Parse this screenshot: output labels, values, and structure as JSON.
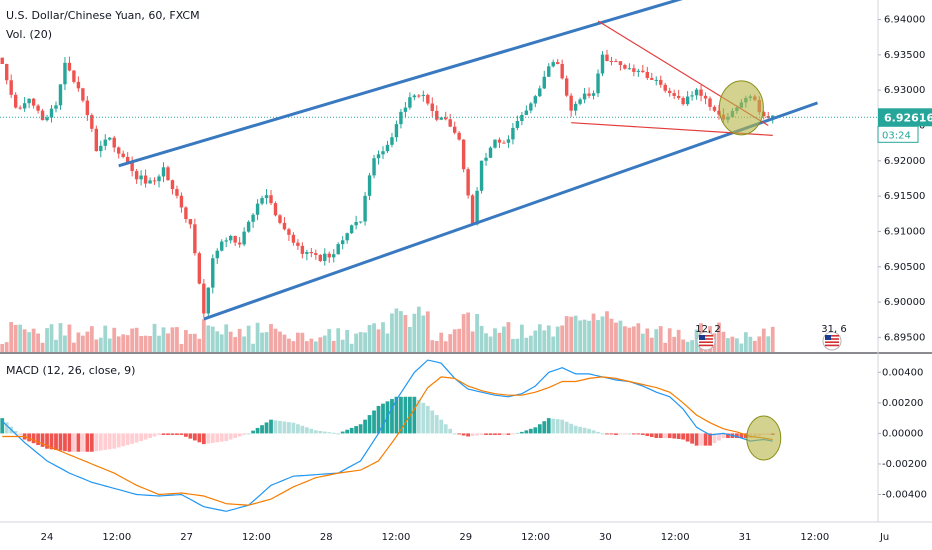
{
  "legend": {
    "symbol": "U.S. Dollar/Chinese Yuan, 60, FXCM",
    "volume": "Vol. (20)",
    "macd": "MACD (12, 26, close, 9)"
  },
  "price_badge": {
    "value": "6.92616",
    "countdown": "03:24"
  },
  "event_markers": [
    {
      "label": "12, 2",
      "icon": "us-flag-icon"
    },
    {
      "label": "31, 6",
      "icon": "us-flag-icon"
    }
  ],
  "colors": {
    "up": "#26a69a",
    "down": "#ef5350",
    "vol_up": "#9fd6cf",
    "vol_down": "#f2a7a5",
    "channel": "#3979c0",
    "wedge": "#e33d3d",
    "highlight_fill": "#b5b544",
    "highlight_stroke": "#8a8f1a",
    "macd_line": "#2196f3",
    "signal_line": "#f57c00",
    "hist_up_strong": "#26a69a",
    "hist_up_weak": "#b2dfdb",
    "hist_down_strong": "#ef5350",
    "hist_down_weak": "#ffcdd2",
    "price_line": "#26a69a"
  },
  "chart_data": [
    {
      "type": "candlestick",
      "title": "U.S. Dollar/Chinese Yuan, 60, FXCM",
      "x_tick_labels": [
        "24",
        "12:00",
        "27",
        "12:00",
        "28",
        "12:00",
        "29",
        "12:00",
        "30",
        "12:00",
        "31",
        "12:00",
        "Ju"
      ],
      "y_tick_labels": [
        "6.94000",
        "6.93500",
        "6.93000",
        "6.92500",
        "6.92000",
        "6.91500",
        "6.91000",
        "6.90500",
        "6.90000",
        "6.89500"
      ],
      "ylim": [
        6.8935,
        6.9422
      ],
      "current_price": 6.92616,
      "close_path": [
        [
          0,
          6.9342
        ],
        [
          3,
          6.9272
        ],
        [
          6,
          6.9286
        ],
        [
          9,
          6.9258
        ],
        [
          12,
          6.9278
        ],
        [
          14,
          6.9336
        ],
        [
          17,
          6.9298
        ],
        [
          19,
          6.9266
        ],
        [
          21,
          6.9218
        ],
        [
          24,
          6.9232
        ],
        [
          27,
          6.9205
        ],
        [
          30,
          6.9178
        ],
        [
          33,
          6.9168
        ],
        [
          36,
          6.9188
        ],
        [
          39,
          6.9146
        ],
        [
          42,
          6.9108
        ],
        [
          45,
          6.8985
        ],
        [
          47,
          6.9062
        ],
        [
          50,
          6.9092
        ],
        [
          53,
          6.9082
        ],
        [
          56,
          6.9128
        ],
        [
          59,
          6.915
        ],
        [
          62,
          6.9108
        ],
        [
          65,
          6.9086
        ],
        [
          68,
          6.9066
        ],
        [
          71,
          6.9062
        ],
        [
          74,
          6.907
        ],
        [
          77,
          6.9098
        ],
        [
          80,
          6.9118
        ],
        [
          83,
          6.9205
        ],
        [
          86,
          6.9218
        ],
        [
          89,
          6.9272
        ],
        [
          92,
          6.9292
        ],
        [
          94,
          6.9298
        ],
        [
          97,
          6.9262
        ],
        [
          100,
          6.925
        ],
        [
          102,
          6.9232
        ],
        [
          105,
          6.9112
        ],
        [
          107,
          6.9196
        ],
        [
          110,
          6.9225
        ],
        [
          113,
          6.923
        ],
        [
          116,
          6.9268
        ],
        [
          119,
          6.9288
        ],
        [
          122,
          6.9332
        ],
        [
          124,
          6.9338
        ],
        [
          127,
          6.9272
        ],
        [
          129,
          6.9288
        ],
        [
          132,
          6.9296
        ],
        [
          134,
          6.9348
        ],
        [
          137,
          6.9342
        ],
        [
          140,
          6.9328
        ],
        [
          143,
          6.9322
        ],
        [
          146,
          6.9312
        ],
        [
          149,
          6.9298
        ],
        [
          152,
          6.9284
        ],
        [
          155,
          6.9302
        ],
        [
          158,
          6.9278
        ],
        [
          161,
          6.9262
        ],
        [
          164,
          6.9272
        ],
        [
          167,
          6.9292
        ],
        [
          170,
          6.9262
        ],
        [
          172,
          6.9268
        ]
      ],
      "channel_lines": [
        {
          "name": "upper",
          "points": [
            [
              26,
              6.9193
            ],
            [
              152,
              6.943
            ]
          ]
        },
        {
          "name": "lower",
          "points": [
            [
              45,
              6.8976
            ],
            [
              182,
              6.9282
            ]
          ]
        }
      ],
      "wedge_lines": [
        {
          "name": "upper",
          "points": [
            [
              133,
              6.9398
            ],
            [
              171,
              6.925
            ]
          ]
        },
        {
          "name": "lower",
          "points": [
            [
              127,
              6.9254
            ],
            [
              172,
              6.9236
            ]
          ]
        }
      ],
      "highlight": {
        "center": [
          165,
          6.9275
        ]
      }
    },
    {
      "type": "bar",
      "title": "Vol. (20)",
      "ylim": [
        0,
        1
      ],
      "values_normalized_profile": "volume bars along bottom of price pane"
    },
    {
      "type": "line",
      "title": "MACD (12, 26, close, 9)",
      "y_tick_labels": [
        "0.00400",
        "0.00200",
        "0.00000",
        "-0.00200",
        "-0.00400"
      ],
      "ylim": [
        -0.0058,
        0.0052
      ],
      "macd_path": [
        [
          0,
          0.0008
        ],
        [
          5,
          -0.0006
        ],
        [
          10,
          -0.0018
        ],
        [
          15,
          -0.0026
        ],
        [
          20,
          -0.0032
        ],
        [
          25,
          -0.0036
        ],
        [
          30,
          -0.004
        ],
        [
          35,
          -0.0041
        ],
        [
          40,
          -0.004
        ],
        [
          45,
          -0.0048
        ],
        [
          50,
          -0.0051
        ],
        [
          55,
          -0.0047
        ],
        [
          60,
          -0.0034
        ],
        [
          65,
          -0.0028
        ],
        [
          70,
          -0.0027
        ],
        [
          75,
          -0.0026
        ],
        [
          80,
          -0.0018
        ],
        [
          84,
          0.0
        ],
        [
          88,
          0.0022
        ],
        [
          92,
          0.004
        ],
        [
          95,
          0.0048
        ],
        [
          98,
          0.0046
        ],
        [
          101,
          0.0036
        ],
        [
          104,
          0.0029
        ],
        [
          107,
          0.0027
        ],
        [
          110,
          0.0025
        ],
        [
          113,
          0.0024
        ],
        [
          116,
          0.0026
        ],
        [
          119,
          0.0031
        ],
        [
          122,
          0.004
        ],
        [
          125,
          0.0043
        ],
        [
          128,
          0.0039
        ],
        [
          131,
          0.0039
        ],
        [
          134,
          0.0037
        ],
        [
          137,
          0.0035
        ],
        [
          140,
          0.0034
        ],
        [
          143,
          0.0031
        ],
        [
          146,
          0.0027
        ],
        [
          149,
          0.0024
        ],
        [
          152,
          0.0016
        ],
        [
          155,
          0.0004
        ],
        [
          158,
          -0.0001
        ],
        [
          161,
          0.0
        ],
        [
          164,
          -0.0002
        ],
        [
          167,
          -0.0005
        ],
        [
          170,
          -0.0004
        ],
        [
          172,
          -0.0005
        ]
      ],
      "signal_path": [
        [
          0,
          -0.0002
        ],
        [
          5,
          -0.0002
        ],
        [
          10,
          -0.0008
        ],
        [
          15,
          -0.0014
        ],
        [
          20,
          -0.002
        ],
        [
          25,
          -0.0026
        ],
        [
          30,
          -0.0034
        ],
        [
          35,
          -0.004
        ],
        [
          40,
          -0.0039
        ],
        [
          45,
          -0.0041
        ],
        [
          50,
          -0.0046
        ],
        [
          55,
          -0.0047
        ],
        [
          60,
          -0.0043
        ],
        [
          65,
          -0.0035
        ],
        [
          70,
          -0.0029
        ],
        [
          75,
          -0.0026
        ],
        [
          80,
          -0.0024
        ],
        [
          84,
          -0.0018
        ],
        [
          88,
          -0.0002
        ],
        [
          92,
          0.0016
        ],
        [
          95,
          0.003
        ],
        [
          98,
          0.0037
        ],
        [
          101,
          0.0036
        ],
        [
          104,
          0.0031
        ],
        [
          107,
          0.0028
        ],
        [
          110,
          0.0026
        ],
        [
          113,
          0.0025
        ],
        [
          116,
          0.0025
        ],
        [
          119,
          0.0027
        ],
        [
          122,
          0.003
        ],
        [
          125,
          0.0034
        ],
        [
          128,
          0.0034
        ],
        [
          131,
          0.0036
        ],
        [
          134,
          0.0037
        ],
        [
          137,
          0.0036
        ],
        [
          140,
          0.0034
        ],
        [
          143,
          0.0032
        ],
        [
          146,
          0.003
        ],
        [
          149,
          0.0027
        ],
        [
          152,
          0.002
        ],
        [
          155,
          0.0012
        ],
        [
          158,
          0.0007
        ],
        [
          161,
          0.0003
        ],
        [
          164,
          0.0001
        ],
        [
          167,
          -0.0002
        ],
        [
          170,
          -0.0003
        ],
        [
          172,
          -0.0004
        ]
      ]
    }
  ]
}
